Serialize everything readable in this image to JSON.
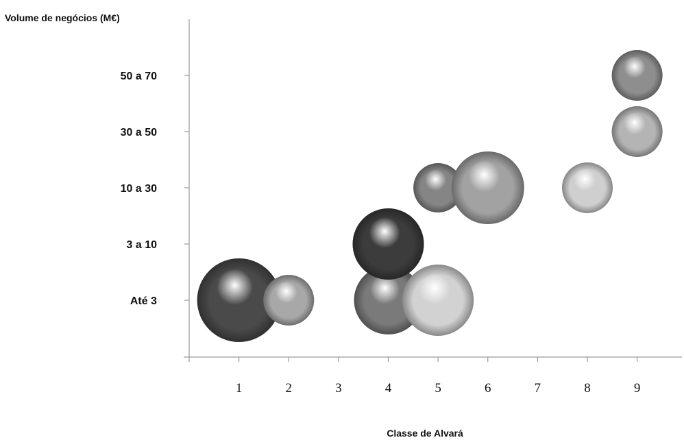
{
  "chart_data": {
    "type": "bubble",
    "ylabel": "Volume de negócios (M€)",
    "xlabel": "Classe de Alvará",
    "x_ticks": [
      "1",
      "2",
      "3",
      "4",
      "5",
      "6",
      "7",
      "8",
      "9"
    ],
    "y_categories": [
      "Até 3",
      "3 a 10",
      "10 a 30",
      "30 a 50",
      "50 a 70"
    ],
    "xlim": [
      0,
      9.9
    ],
    "grid": false,
    "points": [
      {
        "x": 1,
        "y": "Até 3",
        "size": 61,
        "color": "#4a4a4a"
      },
      {
        "x": 2,
        "y": "Até 3",
        "size": 37,
        "color": "#a8a8a8"
      },
      {
        "x": 4,
        "y": "Até 3",
        "size": 50,
        "color": "#7a7a7a"
      },
      {
        "x": 5,
        "y": "Até 3",
        "size": 52,
        "color": "#d2d2d2"
      },
      {
        "x": 4,
        "y": "3 a 10",
        "size": 52,
        "color": "#3c3c3c"
      },
      {
        "x": 5,
        "y": "10 a 30",
        "size": 36,
        "color": "#858585"
      },
      {
        "x": 6,
        "y": "10 a 30",
        "size": 53,
        "color": "#a2a2a2"
      },
      {
        "x": 8,
        "y": "10 a 30",
        "size": 37,
        "color": "#cfcfcf"
      },
      {
        "x": 9,
        "y": "30 a 50",
        "size": 37,
        "color": "#b4b4b4"
      },
      {
        "x": 9,
        "y": "50 a 70",
        "size": 37,
        "color": "#8e8e8e"
      }
    ]
  }
}
